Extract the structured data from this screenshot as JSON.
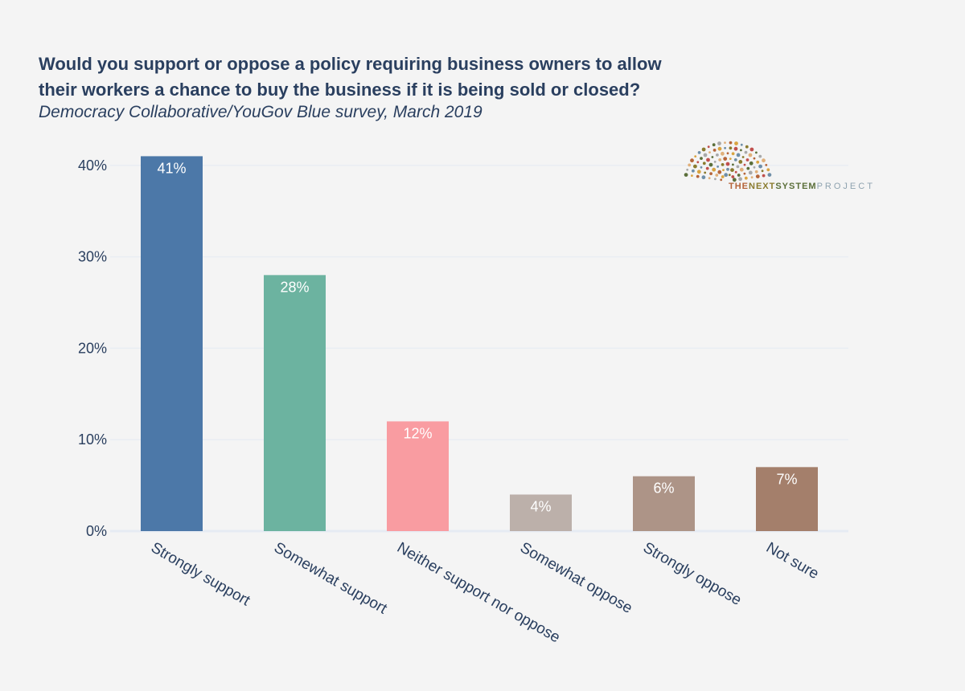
{
  "header": {
    "title_line1": "Would you support or oppose a policy requiring business owners to allow",
    "title_line2": "their workers a chance to buy the business if it is being sold or closed?",
    "subtitle": "Democracy Collaborative/YouGov Blue survey, March 2019"
  },
  "logo": {
    "part1": "THE",
    "part2": "NEXT",
    "part3": "SYSTEM",
    "part4": "PROJECT",
    "icon": "dot-burst-icon"
  },
  "chart_data": {
    "type": "bar",
    "title": "Would you support or oppose a policy requiring business owners to allow their workers a chance to buy the business if it is being sold or closed?",
    "subtitle": "Democracy Collaborative/YouGov Blue survey, March 2019",
    "categories": [
      "Strongly support",
      "Somewhat support",
      "Neither support nor oppose",
      "Somewhat oppose",
      "Strongly oppose",
      "Not sure"
    ],
    "values": [
      41,
      28,
      12,
      4,
      6,
      7
    ],
    "data_labels": [
      "41%",
      "28%",
      "12%",
      "4%",
      "6%",
      "7%"
    ],
    "colors": [
      "#4c78a8",
      "#6cb3a0",
      "#f99ca1",
      "#bcb0aa",
      "#ad9487",
      "#a47f6b"
    ],
    "yticks": [
      0,
      10,
      20,
      30,
      40
    ],
    "ytick_labels": [
      "0%",
      "10%",
      "20%",
      "30%",
      "40%"
    ],
    "ylim": [
      0,
      41.5
    ],
    "xlabel": "",
    "ylabel": "",
    "grid": true,
    "label_color": "#ffffff"
  }
}
